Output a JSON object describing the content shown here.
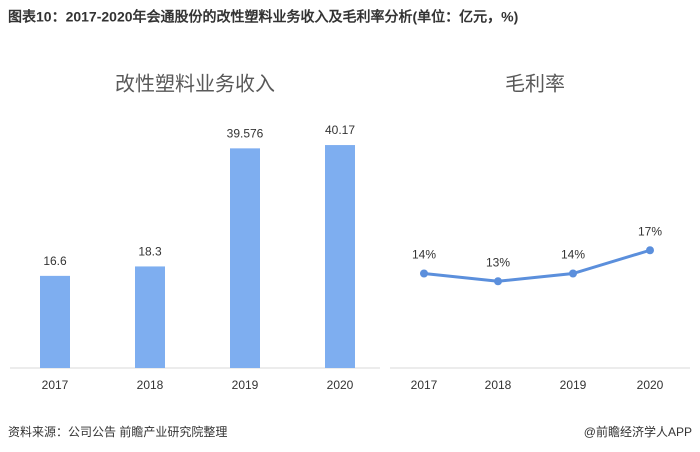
{
  "title": "图表10：2017-2020年会通股份的改性塑料业务收入及毛利率分析(单位：亿元，%)",
  "source": "资料来源：公司公告 前瞻产业研究院整理",
  "credit": "@前瞻经济学人APP",
  "chart_data": [
    {
      "type": "bar",
      "title": "改性塑料业务收入",
      "categories": [
        "2017",
        "2018",
        "2019",
        "2020"
      ],
      "values": [
        16.6,
        18.3,
        39.576,
        40.17
      ],
      "color": "#7eaef0"
    },
    {
      "type": "line",
      "title": "毛利率",
      "categories": [
        "2017",
        "2018",
        "2019",
        "2020"
      ],
      "values": [
        14,
        13,
        14,
        17
      ],
      "value_labels": [
        "14%",
        "13%",
        "14%",
        "17%"
      ],
      "color": "#5b8fdc"
    }
  ]
}
